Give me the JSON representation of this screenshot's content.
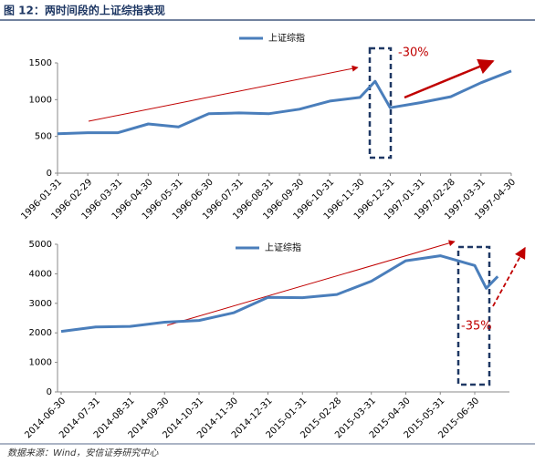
{
  "title": "图 12：两时间段的上证综指表现",
  "source": "数据来源：Wind，安信证券研究中心",
  "chart_data": [
    {
      "type": "line",
      "categories": [
        "1996-01-31",
        "1996-02-29",
        "1996-03-31",
        "1996-04-30",
        "1996-05-31",
        "1996-06-30",
        "1996-07-31",
        "1996-08-31",
        "1996-09-30",
        "1996-10-31",
        "1996-11-30",
        null,
        "1996-12-31",
        "1997-01-31",
        "1997-02-28",
        "1997-03-31",
        "1997-04-30"
      ],
      "series": [
        {
          "name": "上证综指",
          "color": "#4a7ebb",
          "values": [
            537,
            550,
            550,
            670,
            630,
            810,
            820,
            810,
            870,
            980,
            1030,
            1250,
            890,
            960,
            1040,
            1230,
            1390
          ]
        }
      ],
      "ylim": [
        0,
        1500
      ],
      "yticks": [
        0,
        500,
        1000,
        1500
      ],
      "annotation": "-30%"
    },
    {
      "type": "line",
      "categories": [
        "2014-06-30",
        "2014-07-31",
        "2014-08-31",
        "2014-09-30",
        "2014-10-31",
        "2014-11-30",
        "2014-12-31",
        "2015-01-31",
        "2015-02-28",
        "2015-03-31",
        "2015-04-30",
        "2015-05-31",
        "2015-06-30",
        null,
        null
      ],
      "series": [
        {
          "name": "上证综指",
          "color": "#4a7ebb",
          "values": [
            2050,
            2200,
            2220,
            2360,
            2420,
            2680,
            3200,
            3190,
            3300,
            3750,
            4440,
            4610,
            4280,
            3510,
            3910
          ]
        }
      ],
      "ylim": [
        0,
        5000
      ],
      "yticks": [
        0,
        1000,
        2000,
        3000,
        4000,
        5000
      ],
      "annotation": "-35%"
    }
  ]
}
